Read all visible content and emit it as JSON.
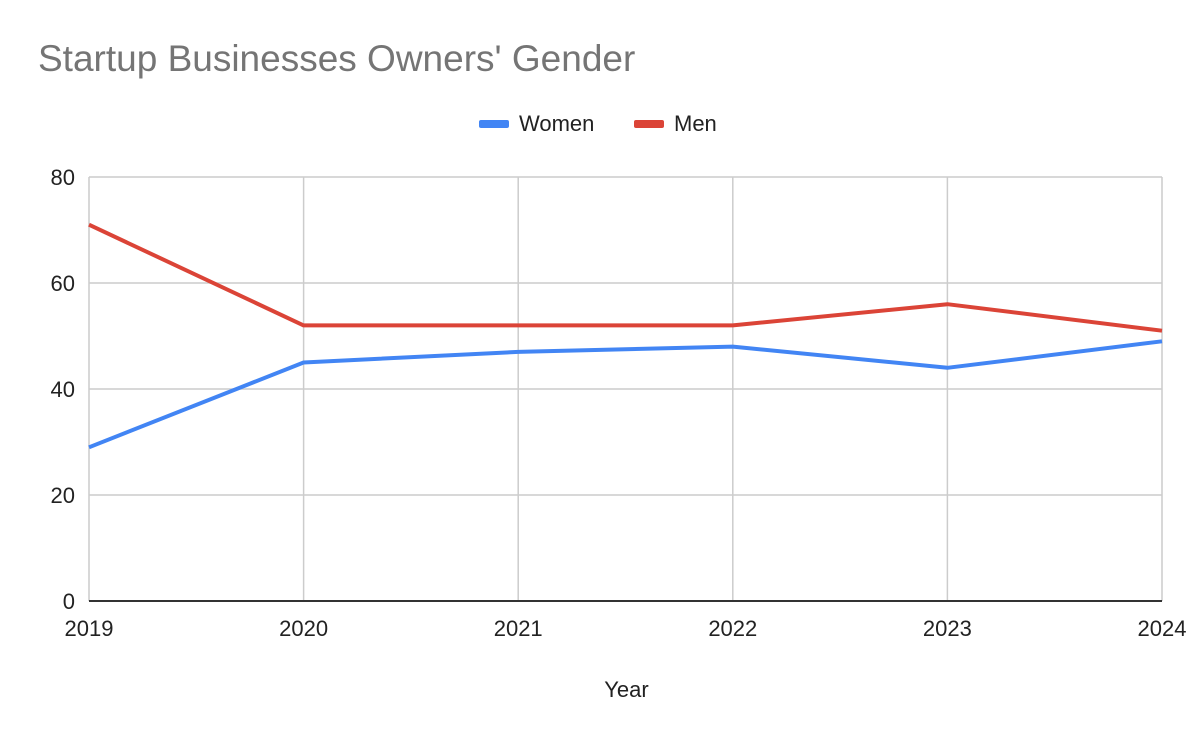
{
  "chart_data": {
    "type": "line",
    "title": "Startup Businesses Owners' Gender",
    "xlabel": "Year",
    "ylabel": "",
    "categories": [
      "2019",
      "2020",
      "2021",
      "2022",
      "2023",
      "2024"
    ],
    "y_ticks": [
      "0",
      "20",
      "40",
      "60",
      "80"
    ],
    "ylim": [
      0,
      80
    ],
    "grid": true,
    "legend_position": "top",
    "series": [
      {
        "name": "Women",
        "color": "#4285f4",
        "values": [
          29,
          45,
          47,
          48,
          44,
          49
        ]
      },
      {
        "name": "Men",
        "color": "#db4437",
        "values": [
          71,
          52,
          52,
          52,
          56,
          51
        ]
      }
    ]
  }
}
